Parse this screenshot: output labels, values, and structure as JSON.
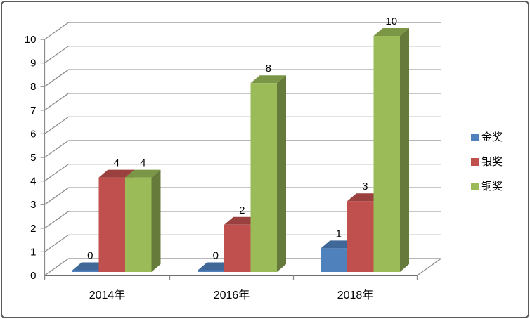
{
  "chart_data": {
    "type": "bar",
    "projection": "3d-clustered-column",
    "title": "",
    "categories": [
      "2014年",
      "2016年",
      "2018年"
    ],
    "series": [
      {
        "name": "金奖",
        "color": "#4F81BD",
        "values": [
          0,
          0,
          1
        ]
      },
      {
        "name": "银奖",
        "color": "#C0504D",
        "values": [
          4,
          2,
          3
        ]
      },
      {
        "name": "铜奖",
        "color": "#9BBB59",
        "values": [
          4,
          8,
          10
        ]
      }
    ],
    "y_axis": {
      "min": 0,
      "max": 10,
      "step": 1,
      "tick_labels": [
        "0",
        "1",
        "2",
        "3",
        "4",
        "5",
        "6",
        "7",
        "8",
        "9",
        "10"
      ]
    },
    "data_labels_shown": true,
    "grid": true,
    "legend_position": "right",
    "colors": {
      "grid": "#8c8c8c",
      "axis": "#595959",
      "text": "#000000",
      "frame_border": "#5a5a5a",
      "background": "#ffffff"
    }
  }
}
